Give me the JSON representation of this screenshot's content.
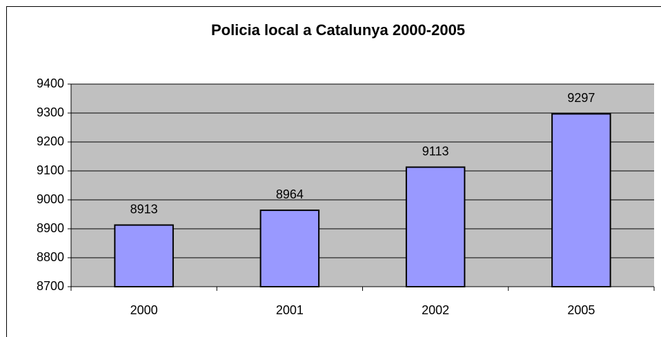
{
  "chart_data": {
    "type": "bar",
    "title": "Policia local a Catalunya 2000-2005",
    "categories": [
      "2000",
      "2001",
      "2002",
      "2005"
    ],
    "values": [
      8913,
      8964,
      9113,
      9297
    ],
    "color": "#9999ff",
    "ylim": [
      8700,
      9400
    ],
    "yticks": [
      8700,
      8800,
      8900,
      9000,
      9100,
      9200,
      9300,
      9400
    ],
    "grid": true
  }
}
